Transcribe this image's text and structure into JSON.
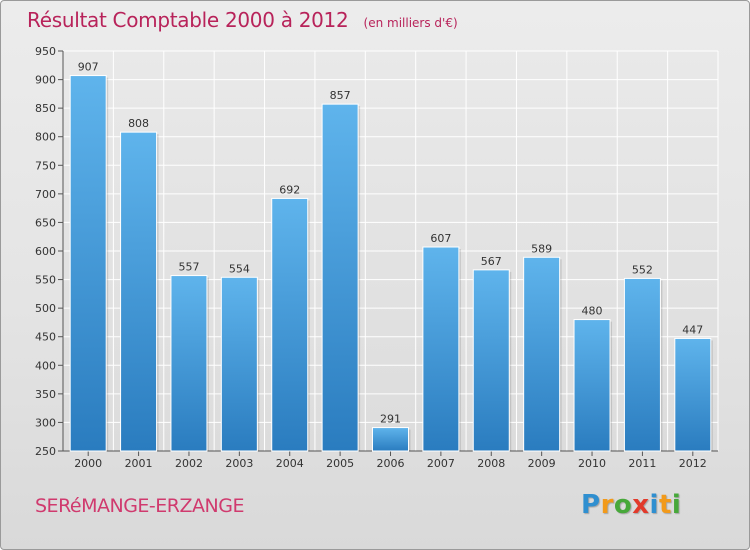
{
  "title": "Résultat Comptable 2000 à 2012",
  "unit": "(en milliers d'€)",
  "town": "SERéMANGE-ERZANGE",
  "logo": {
    "letters": [
      "P",
      "r",
      "o",
      "x",
      "i",
      "t",
      "i"
    ],
    "colors": [
      "#2f8fd0",
      "#f29a1a",
      "#47a83a",
      "#e23a2b",
      "#2f8fd0",
      "#f29a1a",
      "#47a83a"
    ]
  },
  "colors": {
    "bar_top": "#5fb4ec",
    "bar_bottom": "#2a7cbf",
    "title": "#b8235a",
    "grid": "#ffffff"
  },
  "chart_data": {
    "type": "bar",
    "title": "Résultat Comptable 2000 à 2012",
    "xlabel": "",
    "ylabel": "",
    "categories": [
      "2000",
      "2001",
      "2002",
      "2003",
      "2004",
      "2005",
      "2006",
      "2007",
      "2008",
      "2009",
      "2010",
      "2011",
      "2012"
    ],
    "values": [
      907,
      808,
      557,
      554,
      692,
      857,
      291,
      607,
      567,
      589,
      480,
      552,
      447
    ],
    "yticks": [
      "250",
      "300",
      "350",
      "400",
      "450",
      "500",
      "550",
      "600",
      "650",
      "700",
      "750",
      "800",
      "850",
      "900",
      "950"
    ],
    "ylim": [
      250,
      950
    ],
    "grid": true,
    "legend": "none"
  }
}
